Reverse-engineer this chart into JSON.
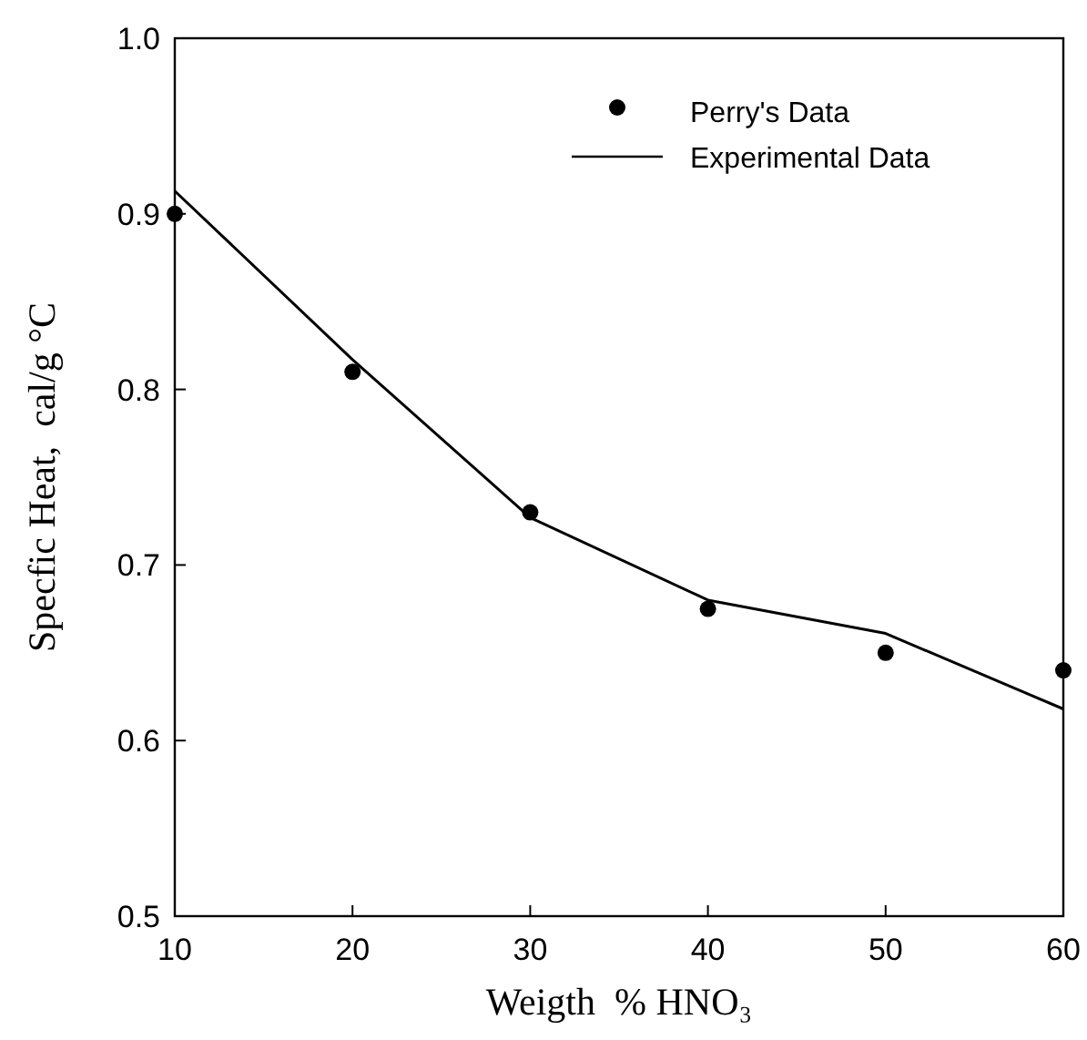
{
  "chart_data": {
    "type": "line",
    "xlabel": "Weigth  % HNO₃",
    "ylabel": "Specfic Heat,  cal/g °C",
    "xlim": [
      10,
      60
    ],
    "xticks": [
      10,
      20,
      30,
      40,
      50,
      60
    ],
    "ylim": [
      0.5,
      1.0
    ],
    "yticks": [
      0.5,
      0.6,
      0.7,
      0.8,
      0.9,
      {
        "value": 1.0,
        "label": "1.0"
      }
    ],
    "legend": "top right",
    "grid": false,
    "series": [
      {
        "name": "Perry's Data",
        "type": "scatter",
        "marker": "circle",
        "color": "#000000",
        "x": [
          10,
          20,
          30,
          40,
          50,
          60
        ],
        "values": [
          0.9,
          0.81,
          0.73,
          0.675,
          0.65,
          0.64
        ]
      },
      {
        "name": "Experimental Data",
        "marker": "none",
        "line_style": "solid",
        "color": "#000000",
        "x": [
          10,
          20,
          30,
          40,
          50,
          60
        ],
        "values": [
          0.913,
          0.817,
          0.727,
          0.68,
          0.661,
          0.618
        ]
      }
    ]
  }
}
